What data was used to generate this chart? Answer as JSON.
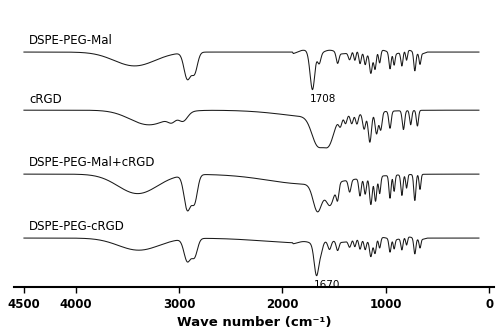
{
  "labels": [
    "DSPE-PEG-Mal",
    "cRGD",
    "DSPE-PEG-Mal+cRGD",
    "DSPE-PEG-cRGD"
  ],
  "xmin": 4500,
  "xmax": 0,
  "xticks": [
    4500,
    4000,
    3000,
    2000,
    1000,
    0
  ],
  "xlabel": "Wave number (cm⁻¹)",
  "annotation1": {
    "text": "1708",
    "x": 1708,
    "spectrum_idx": 0
  },
  "annotation2": {
    "text": "1670",
    "x": 1670,
    "spectrum_idx": 3
  },
  "line_color": "#1a1a1a",
  "bg_color": "#ffffff",
  "label_fontsize": 8.5,
  "xlabel_fontsize": 9.5,
  "tick_fontsize": 8.5,
  "offsets": [
    3.2,
    2.2,
    1.1,
    0.0
  ],
  "v_scale": 0.65
}
